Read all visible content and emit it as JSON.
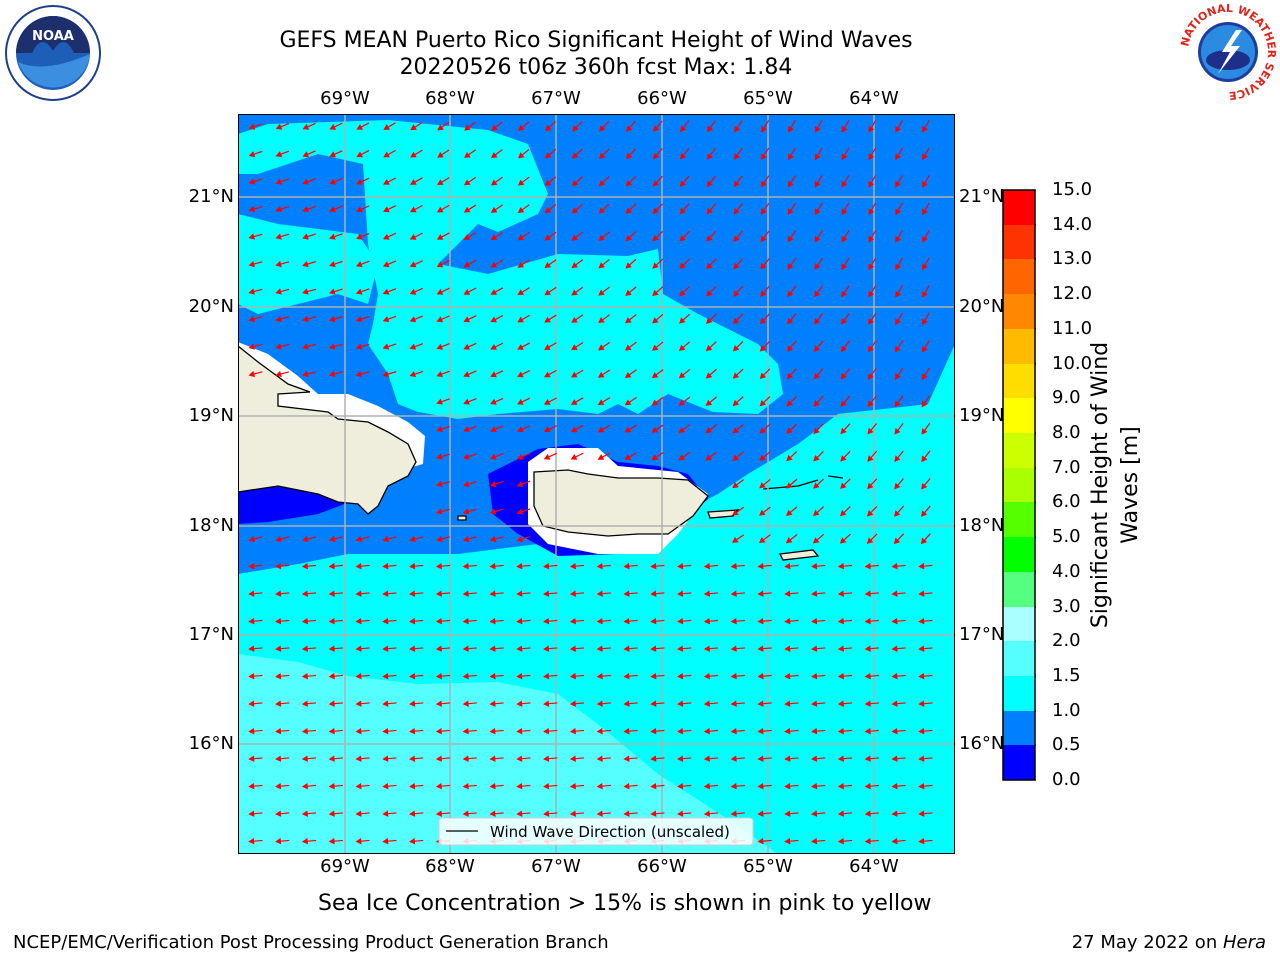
{
  "title": {
    "line1": "GEFS MEAN Puerto Rico Significant Height of Wind Waves",
    "line2": "20220526 t06z 360h fcst   Max: 1.84"
  },
  "logos": {
    "noaa_text": "NOAA",
    "nws_ring_text": "NATIONAL WEATHER SERVICE"
  },
  "map": {
    "lon_labels": [
      "69°W",
      "68°W",
      "67°W",
      "66°W",
      "65°W",
      "64°W"
    ],
    "lat_labels": [
      "21°N",
      "20°N",
      "19°N",
      "18°N",
      "17°N",
      "16°N"
    ],
    "legend_label": "Wind Wave Direction (unscaled)",
    "colors": {
      "land": "#efeedd",
      "sea_ice_free_white": "#ffffff",
      "arrow": "#ff0000",
      "grid": "#b0b0b0"
    }
  },
  "colorbar": {
    "label": "Significant Height of Wind Waves [m]",
    "ticks": [
      "15.0",
      "14.0",
      "13.0",
      "12.0",
      "11.0",
      "10.0",
      "9.0",
      "8.0",
      "7.0",
      "6.0",
      "5.0",
      "4.0",
      "3.0",
      "2.0",
      "1.5",
      "1.0",
      "0.5",
      "0.0"
    ],
    "colors": [
      "#0000ff",
      "#0080ff",
      "#00ffff",
      "#55ffff",
      "#aaffff",
      "#55ff80",
      "#00ff00",
      "#55ff00",
      "#aaff00",
      "#ccff00",
      "#ffff00",
      "#ffdd00",
      "#ffbb00",
      "#ff8800",
      "#ff6600",
      "#ff3300",
      "#ff0000"
    ]
  },
  "caption": "Sea Ice Concentration > 15% is shown in pink to yellow",
  "footer": {
    "left": "NCEP/EMC/Verification Post Processing Product Generation Branch",
    "right_prefix": "27 May 2022 on ",
    "right_host": "Hera"
  }
}
